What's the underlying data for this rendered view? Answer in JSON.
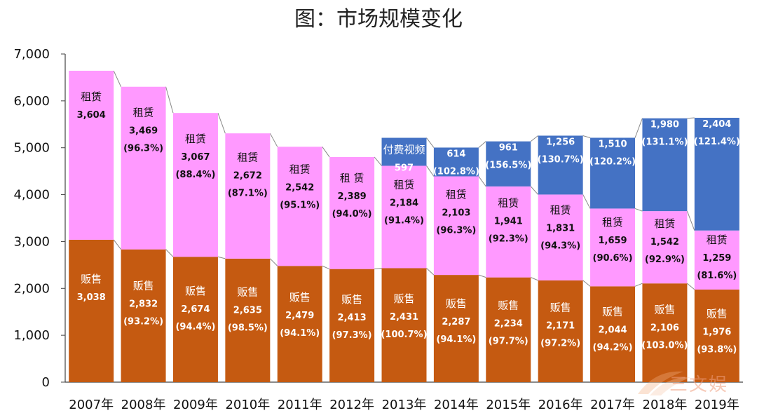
{
  "chart_data": {
    "type": "bar",
    "title": "图：市场规模变化",
    "stacked": true,
    "ylim": [
      0,
      7000
    ],
    "y_ticks": [
      "0",
      "1,000",
      "2,000",
      "3,000",
      "4,000",
      "5,000",
      "6,000",
      "7,000"
    ],
    "grid": false,
    "categories": [
      "2007年",
      "2008年",
      "2009年",
      "2010年",
      "2011年",
      "2012年",
      "2013年",
      "2014年",
      "2015年",
      "2016年",
      "2017年",
      "2018年",
      "2019年"
    ],
    "series": [
      {
        "name": "贩售",
        "color": "#c55a11",
        "values": [
          3038,
          2832,
          2674,
          2635,
          2479,
          2413,
          2431,
          2287,
          2234,
          2171,
          2044,
          2106,
          1976
        ],
        "labels": [
          "3,038",
          "2,832",
          "2,674",
          "2,635",
          "2,479",
          "2,413",
          "2,431",
          "2,287",
          "2,234",
          "2,171",
          "2,044",
          "2,106",
          "1,976"
        ],
        "pct_labels": [
          "",
          "(93.2%)",
          "(94.4%)",
          "(98.5%)",
          "(94.1%)",
          "(97.3%)",
          "(100.7%)",
          "(94.1%)",
          "(97.7%)",
          "(97.2%)",
          "(94.2%)",
          "(103.0%)",
          "(93.8%)"
        ],
        "segment_names": [
          "贩售",
          "贩售",
          "贩售",
          "贩售",
          "贩售",
          "贩售",
          "贩售",
          "贩售",
          "贩售",
          "贩售",
          "贩售",
          "贩售",
          "贩售"
        ]
      },
      {
        "name": "租赁",
        "color": "#ff99ff",
        "values": [
          3604,
          3469,
          3067,
          2672,
          2542,
          2389,
          2184,
          2103,
          1941,
          1831,
          1659,
          1542,
          1259
        ],
        "labels": [
          "3,604",
          "3,469",
          "3,067",
          "2,672",
          "2,542",
          "2,389",
          "2,184",
          "2,103",
          "1,941",
          "1,831",
          "1,659",
          "1,542",
          "1,259"
        ],
        "pct_labels": [
          "",
          "(96.3%)",
          "(88.4%)",
          "(87.1%)",
          "(95.1%)",
          "(94.0%)",
          "(91.4%)",
          "(96.3%)",
          "(92.3%)",
          "(94.3%)",
          "(90.6%)",
          "(92.9%)",
          "(81.6%)"
        ],
        "segment_names": [
          "租赁",
          "租赁",
          "租赁",
          "租赁",
          "租赁",
          "租 赁",
          "租赁",
          "租赁",
          "租赁",
          "租赁",
          "租赁",
          "租赁",
          "租赁"
        ]
      },
      {
        "name": "付费视频",
        "color": "#4472c4",
        "values": [
          0,
          0,
          0,
          0,
          0,
          0,
          597,
          614,
          961,
          1256,
          1510,
          1980,
          2404
        ],
        "labels": [
          "",
          "",
          "",
          "",
          "",
          "",
          "597",
          "614",
          "961",
          "1,256",
          "1,510",
          "1,980",
          "2,404"
        ],
        "pct_labels": [
          "",
          "",
          "",
          "",
          "",
          "",
          "",
          "(102.8%)",
          "(156.5%)",
          "(130.7%)",
          "(120.2%)",
          "(131.1%)",
          "(121.4%)"
        ],
        "segment_names": [
          "",
          "",
          "",
          "",
          "",
          "",
          "付费视频",
          "付费视频",
          "付费视频",
          "付费视频",
          "付费视频",
          "付费视频",
          "付费视频"
        ]
      }
    ]
  },
  "watermark": {
    "text": "三文娱"
  }
}
